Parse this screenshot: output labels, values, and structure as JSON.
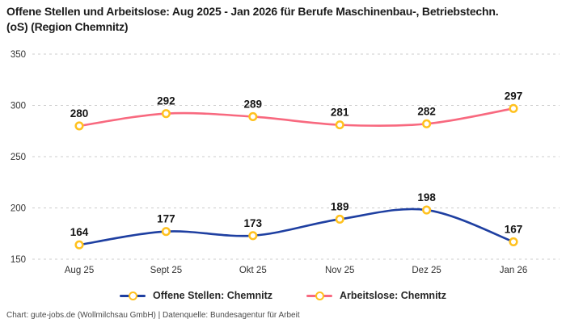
{
  "title": "Offene Stellen und Arbeitslose: Aug 2025 - Jan 2026 für Berufe Maschinenbau-, Betriebstechn.(oS) (Region Chemnitz)",
  "footer": "Chart: gute-jobs.de (Wollmilchsau GmbH) | Datenquelle: Bundesagentur für Arbeit",
  "colors": {
    "offene_stellen": "#1E3FA1",
    "arbeitslose": "#F8697F",
    "marker_ring": "#FFC11E",
    "grid": "#CCCCCC",
    "tick_text": "#333333",
    "value_label": "#141414"
  },
  "chart_data": {
    "type": "line",
    "categories": [
      "Aug 25",
      "Sept 25",
      "Okt 25",
      "Nov 25",
      "Dez 25",
      "Jan 26"
    ],
    "series": [
      {
        "name": "Offene Stellen: Chemnitz",
        "color_key": "offene_stellen",
        "values": [
          164,
          177,
          173,
          189,
          198,
          167
        ]
      },
      {
        "name": "Arbeitslose: Chemnitz",
        "color_key": "arbeitslose",
        "values": [
          280,
          292,
          289,
          281,
          282,
          297
        ]
      }
    ],
    "ylim": [
      150,
      350
    ],
    "yticks": [
      150,
      200,
      250,
      300,
      350
    ],
    "grid": "horizontal-dashed",
    "marker": "open-circle-yellow",
    "line_style": "smooth",
    "legend_position": "bottom",
    "value_labels": "above-points"
  }
}
